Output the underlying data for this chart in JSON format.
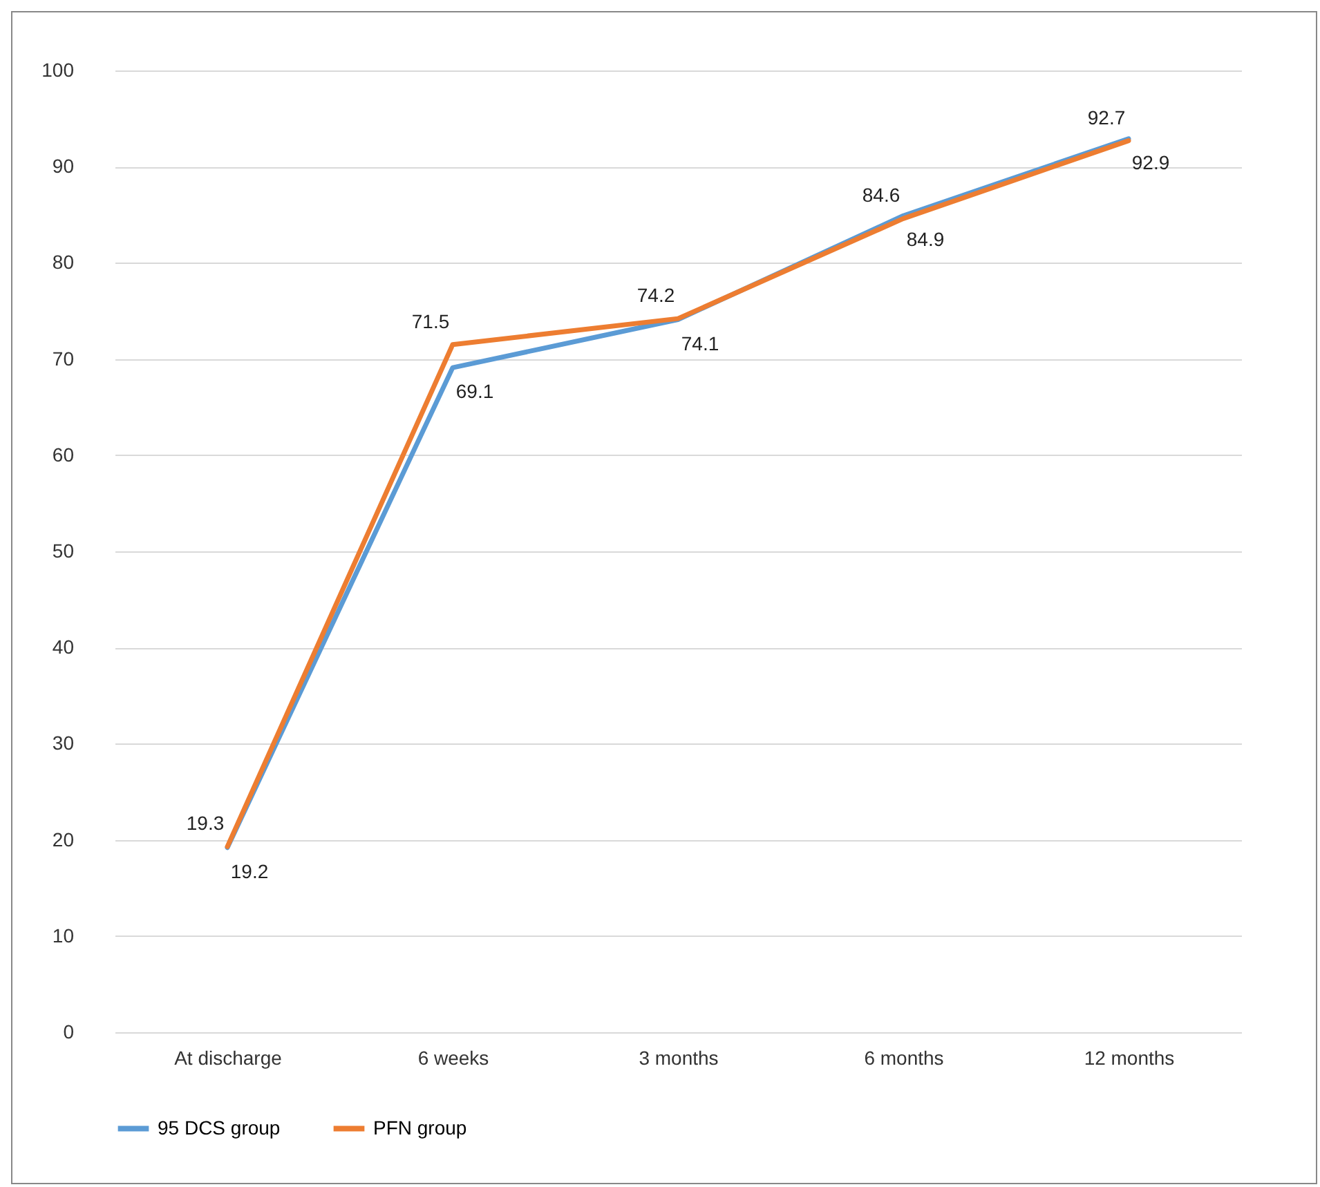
{
  "chart_data": {
    "type": "line",
    "categories": [
      "At discharge",
      "6 weeks",
      "3 months",
      "6 months",
      "12 months"
    ],
    "series": [
      {
        "name": "95 DCS group",
        "color": "#5b9bd5",
        "values": [
          19.2,
          69.1,
          74.1,
          84.9,
          92.9
        ]
      },
      {
        "name": "PFN group",
        "color": "#ed7d31",
        "values": [
          19.3,
          71.5,
          74.2,
          84.6,
          92.7
        ]
      }
    ],
    "ylim": [
      0,
      100
    ],
    "yticks": [
      0,
      10,
      20,
      30,
      40,
      50,
      60,
      70,
      80,
      90,
      100
    ],
    "grid": "y",
    "legend": "bottom",
    "data_labels": true,
    "marker": "none",
    "line_style": "solid"
  }
}
